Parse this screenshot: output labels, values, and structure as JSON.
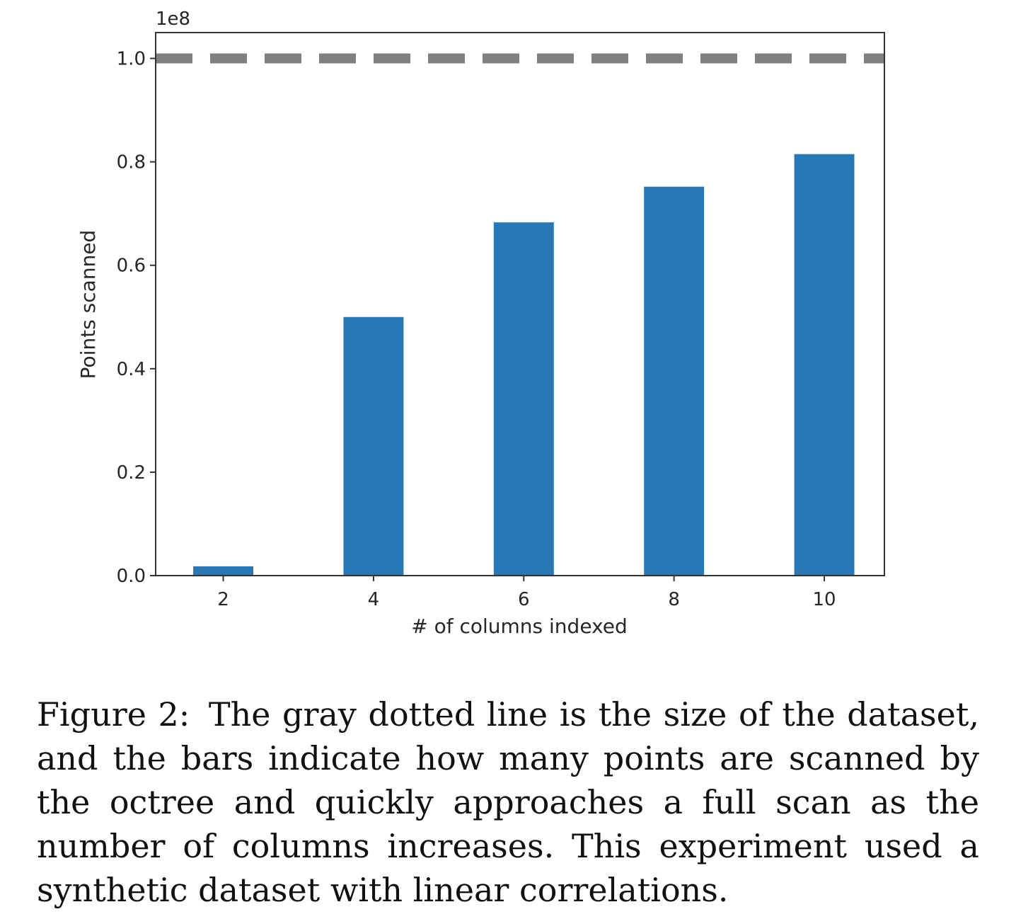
{
  "chart_data": {
    "type": "bar",
    "categories": [
      "2",
      "4",
      "6",
      "8",
      "10"
    ],
    "x": [
      2,
      4,
      6,
      8,
      10
    ],
    "values": [
      1800000.0,
      50000000.0,
      68300000.0,
      75200000.0,
      81500000.0
    ],
    "reference_line": {
      "y": 100000000.0,
      "style": "dashed",
      "color": "#808080"
    },
    "bar_color": "#2878b5",
    "xlabel": "# of columns indexed",
    "ylabel": "Points scanned",
    "y_offset_label": "1e8",
    "ylim": [
      0,
      105000000.0
    ],
    "xlim": [
      1.1,
      10.8
    ],
    "yticks": [
      0,
      20000000.0,
      40000000.0,
      60000000.0,
      80000000.0,
      100000000.0
    ],
    "ytick_labels": [
      "0.0",
      "0.2",
      "0.4",
      "0.6",
      "0.8",
      "1.0"
    ],
    "xtick_labels": [
      "2",
      "4",
      "6",
      "8",
      "10"
    ],
    "grid": false
  },
  "caption": {
    "label": "Figure 2:",
    "text": "The gray dotted line is the size of the dataset, and the bars indicate how many points are scanned by the octree and quickly approaches a full scan as the number of columns increases.  This experiment used a synthetic dataset with linear correlations."
  }
}
